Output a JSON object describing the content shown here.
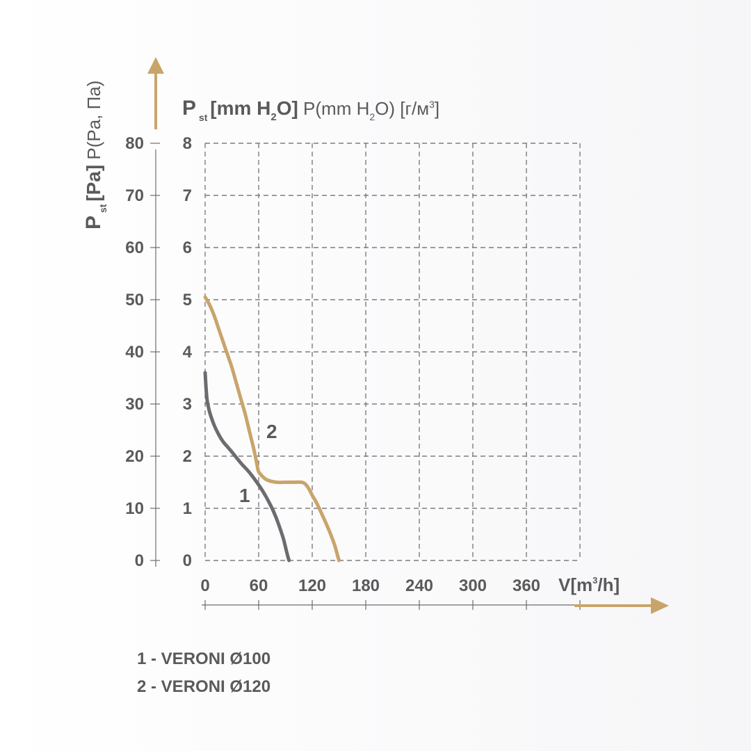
{
  "chart_data": {
    "type": "line",
    "x_unit_label": "V[m³/h]",
    "x_ticks": [
      "0",
      "60",
      "120",
      "180",
      "240",
      "300",
      "360"
    ],
    "x_tick_values": [
      0,
      60,
      120,
      180,
      240,
      300,
      360
    ],
    "xlim": [
      0,
      420
    ],
    "y_left_label": "P st [Pa] P(Pa, Па)",
    "y_left_ticks": [
      "0",
      "10",
      "20",
      "30",
      "40",
      "50",
      "60",
      "70",
      "80"
    ],
    "y_right_label": "P st [mm H2O] P(mm H2O) [г/м³]",
    "y_right_ticks": [
      "0",
      "1",
      "2",
      "3",
      "4",
      "5",
      "6",
      "7",
      "8"
    ],
    "ylim": [
      0,
      80
    ],
    "grid": true,
    "series": [
      {
        "name": "1",
        "color": "#6d6b70",
        "x": [
          0,
          2,
          5,
          10,
          15,
          20,
          25,
          30,
          40,
          50,
          60,
          68,
          75,
          80,
          85,
          88,
          90,
          92,
          94
        ],
        "y": [
          36,
          31,
          28.5,
          26,
          24.2,
          22.8,
          21.8,
          20.8,
          18.7,
          16.8,
          14.5,
          12.3,
          10,
          8,
          5.6,
          4,
          2.6,
          1.2,
          0
        ]
      },
      {
        "name": "2",
        "color": "#c9a46a",
        "x": [
          0,
          5,
          10,
          15,
          20,
          25,
          30,
          35,
          40,
          45,
          50,
          55,
          58,
          60,
          65,
          70,
          80,
          90,
          100,
          108,
          112,
          116,
          120,
          125,
          130,
          135,
          140,
          145,
          148,
          150
        ],
        "y": [
          50.5,
          49,
          47,
          44.5,
          42,
          39.5,
          37,
          34,
          31,
          28,
          24.5,
          21,
          18.5,
          17,
          16,
          15.4,
          15,
          15,
          15,
          15,
          14.7,
          13.8,
          12.5,
          11,
          9.2,
          7.3,
          5.3,
          3,
          1.2,
          0
        ]
      }
    ],
    "point_labels": [
      "1",
      "2"
    ],
    "legend": [
      "1 - VERONI Ø100",
      "2 - VERONI Ø120"
    ]
  }
}
